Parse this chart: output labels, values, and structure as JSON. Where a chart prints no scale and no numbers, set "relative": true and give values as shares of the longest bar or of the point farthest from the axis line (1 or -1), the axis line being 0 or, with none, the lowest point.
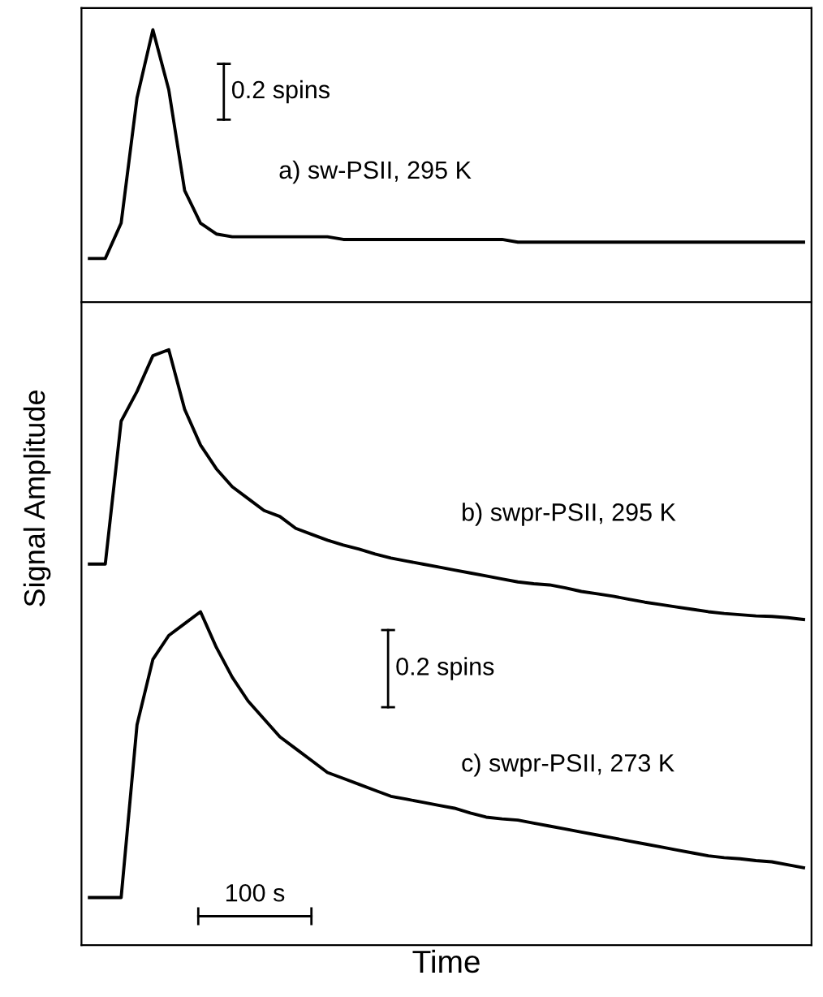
{
  "chart_data": [
    {
      "type": "line",
      "relative": true,
      "legend": false,
      "categories": [
        null,
        null,
        null,
        null,
        null,
        null,
        null,
        null,
        null,
        null,
        null,
        null,
        null,
        null,
        null,
        null,
        null,
        null,
        null,
        null,
        null,
        null,
        null,
        null,
        null,
        null,
        null,
        null,
        null,
        null,
        null,
        null,
        null,
        null,
        null,
        null,
        null,
        null,
        null,
        null,
        null,
        null,
        null,
        null,
        null,
        null
      ],
      "series": [
        {
          "name": "a) sw-PSII, 295 K",
          "color": "#000000",
          "values": [
            0.16,
            0.16,
            0.29,
            0.75,
            1.0,
            0.78,
            0.41,
            0.29,
            0.25,
            0.24,
            0.24,
            0.24,
            0.24,
            0.24,
            0.24,
            0.24,
            0.23,
            0.23,
            0.23,
            0.23,
            0.23,
            0.23,
            0.23,
            0.23,
            0.23,
            0.23,
            0.23,
            0.22,
            0.22,
            0.22,
            0.22,
            0.22,
            0.22,
            0.22,
            0.22,
            0.22,
            0.22,
            0.22,
            0.22,
            0.22,
            0.22,
            0.22,
            0.22,
            0.22,
            0.22,
            0.22
          ]
        }
      ],
      "annotations": [
        "0.2 spins"
      ]
    },
    {
      "type": "line",
      "relative": true,
      "legend": false,
      "xlabel": "Time",
      "ylabel": "Signal Amplitude",
      "categories": [
        null,
        null,
        null,
        null,
        null,
        null,
        null,
        null,
        null,
        null,
        null,
        null,
        null,
        null,
        null,
        null,
        null,
        null,
        null,
        null,
        null,
        null,
        null,
        null,
        null,
        null,
        null,
        null,
        null,
        null,
        null,
        null,
        null,
        null,
        null,
        null,
        null,
        null,
        null,
        null,
        null,
        null,
        null,
        null,
        null,
        null
      ],
      "series": [
        {
          "name": "b) swpr-PSII, 295 K",
          "color": "#000000",
          "values": [
            0.64,
            0.64,
            0.88,
            0.93,
            0.99,
            1.0,
            0.9,
            0.84,
            0.8,
            0.77,
            0.75,
            0.73,
            0.72,
            0.7,
            0.69,
            0.68,
            0.672,
            0.665,
            0.657,
            0.65,
            0.645,
            0.64,
            0.635,
            0.63,
            0.625,
            0.62,
            0.615,
            0.61,
            0.607,
            0.605,
            0.6,
            0.594,
            0.59,
            0.586,
            0.581,
            0.576,
            0.572,
            0.568,
            0.564,
            0.56,
            0.557,
            0.555,
            0.553,
            0.552,
            0.55,
            0.547
          ]
        },
        {
          "name": "c) swpr-PSII, 273 K",
          "color": "#000000",
          "values": [
            0.08,
            0.08,
            0.08,
            0.37,
            0.48,
            0.52,
            0.54,
            0.56,
            0.5,
            0.45,
            0.41,
            0.38,
            0.35,
            0.33,
            0.31,
            0.29,
            0.28,
            0.27,
            0.26,
            0.25,
            0.245,
            0.24,
            0.235,
            0.23,
            0.222,
            0.215,
            0.212,
            0.21,
            0.205,
            0.2,
            0.195,
            0.19,
            0.185,
            0.18,
            0.175,
            0.17,
            0.165,
            0.16,
            0.155,
            0.15,
            0.147,
            0.145,
            0.142,
            0.14,
            0.135,
            0.13
          ]
        }
      ],
      "annotations": [
        "0.2 spins",
        "100 s"
      ]
    }
  ]
}
